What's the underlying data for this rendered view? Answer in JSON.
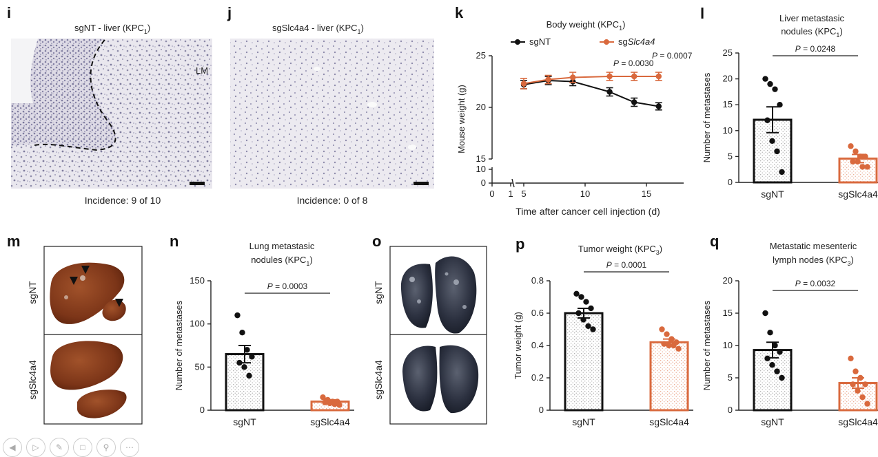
{
  "panels": {
    "i": {
      "letter": "i",
      "title": "sgNT - liver (KPC",
      "sub": "1",
      "title_end": ")",
      "label_lm": "LM",
      "incidence": "Incidence: 9 of 10"
    },
    "j": {
      "letter": "j",
      "title": "sgSlc4a4 - liver (KPC",
      "sub": "1",
      "title_end": ")",
      "incidence": "Incidence: 0 of 8"
    },
    "m": {
      "letter": "m",
      "row1": "sgNT",
      "row2": "sgSlc4a4"
    },
    "o": {
      "letter": "o",
      "row1": "sgNT",
      "row2": "sgSlc4a4"
    }
  },
  "colors": {
    "sgNT": "#111111",
    "sgSlc4a4": "#d9693d"
  },
  "chart_data": [
    {
      "id": "k",
      "letter": "k",
      "type": "line",
      "title": "Body weight (KPC",
      "title_sub": "1",
      "title_end": ")",
      "xlabel": "Time after cancer cell injection (d)",
      "ylabel": "Mouse weight (g)",
      "x_ticks": [
        "0",
        "1",
        "5",
        "10",
        "15"
      ],
      "y_ticks": [
        "0",
        "10",
        "15",
        "20",
        "25"
      ],
      "axis_break": true,
      "xlim": [
        5,
        17
      ],
      "ylim": [
        15,
        25
      ],
      "legend": [
        "sgNT",
        "sgSlc4a4"
      ],
      "legend_prefix": "sg",
      "legend_italic": "Slc4a4",
      "annotations": [
        "P = 0.0030",
        "P = 0.0007"
      ],
      "series": [
        {
          "name": "sgNT",
          "x": [
            5,
            7,
            9,
            12,
            14,
            16
          ],
          "y": [
            22.2,
            22.6,
            22.5,
            21.5,
            20.5,
            20.1
          ],
          "err": [
            0.4,
            0.4,
            0.4,
            0.4,
            0.4,
            0.35
          ]
        },
        {
          "name": "sgSlc4a4",
          "x": [
            5,
            7,
            9,
            12,
            14,
            16
          ],
          "y": [
            22.3,
            22.7,
            22.9,
            23.0,
            23.0,
            23.0
          ],
          "err": [
            0.5,
            0.4,
            0.5,
            0.4,
            0.4,
            0.4
          ]
        }
      ]
    },
    {
      "id": "l",
      "letter": "l",
      "type": "bar",
      "title": [
        "Liver metastasic",
        "nodules (KPC"
      ],
      "title_sub": "1",
      "title_end": ")",
      "ylabel": "Number of metastases",
      "y_ticks": [
        "0",
        "5",
        "10",
        "15",
        "20",
        "25"
      ],
      "ylim": [
        0,
        25
      ],
      "categories": [
        "sgNT",
        "sgSlc4a4"
      ],
      "values": [
        12.1,
        4.6
      ],
      "err": [
        2.5,
        0.8
      ],
      "points": [
        [
          20,
          19,
          18,
          15,
          12,
          8,
          6,
          2
        ],
        [
          7,
          6,
          5,
          5,
          4,
          4,
          3,
          3
        ]
      ],
      "pvalue": "P = 0.0248"
    },
    {
      "id": "n",
      "letter": "n",
      "type": "bar",
      "title": [
        "Lung metastasic",
        "nodules (KPC"
      ],
      "title_sub": "1",
      "title_end": ")",
      "ylabel": "Number of metastases",
      "y_ticks": [
        "0",
        "50",
        "100",
        "150"
      ],
      "ylim": [
        0,
        150
      ],
      "categories": [
        "sgNT",
        "sgSlc4a4"
      ],
      "values": [
        65,
        10
      ],
      "err": [
        10,
        2
      ],
      "points": [
        [
          110,
          90,
          70,
          62,
          55,
          50,
          40
        ],
        [
          15,
          12,
          10,
          10,
          9,
          8,
          7,
          6
        ]
      ],
      "pvalue": "P = 0.0003"
    },
    {
      "id": "p",
      "letter": "p",
      "type": "bar",
      "title": [
        "Tumor weight (KPC"
      ],
      "title_sub": "3",
      "title_end": ")",
      "ylabel": "Tumor weight (g)",
      "y_ticks": [
        "0",
        "0.2",
        "0.4",
        "0.6",
        "0.8"
      ],
      "ylim": [
        0,
        0.8
      ],
      "categories": [
        "sgNT",
        "sgSlc4a4"
      ],
      "values": [
        0.6,
        0.42
      ],
      "err": [
        0.03,
        0.02
      ],
      "points": [
        [
          0.72,
          0.7,
          0.67,
          0.63,
          0.6,
          0.56,
          0.52,
          0.5
        ],
        [
          0.5,
          0.47,
          0.44,
          0.42,
          0.41,
          0.4,
          0.4,
          0.38
        ]
      ],
      "pvalue": "P = 0.0001"
    },
    {
      "id": "q",
      "letter": "q",
      "type": "bar",
      "title": [
        "Metastatic mesenteric",
        "lymph nodes (KPC"
      ],
      "title_sub": "3",
      "title_end": ")",
      "ylabel": "Number of metastases",
      "y_ticks": [
        "0",
        "5",
        "10",
        "15",
        "20"
      ],
      "ylim": [
        0,
        20
      ],
      "categories": [
        "sgNT",
        "sgSlc4a4"
      ],
      "values": [
        9.3,
        4.2
      ],
      "err": [
        1.2,
        0.8
      ],
      "points": [
        [
          15,
          12,
          10,
          9,
          8,
          7,
          6,
          5
        ],
        [
          8,
          6,
          5,
          4,
          4,
          3,
          2,
          1
        ]
      ],
      "pvalue": "P = 0.0032"
    }
  ]
}
